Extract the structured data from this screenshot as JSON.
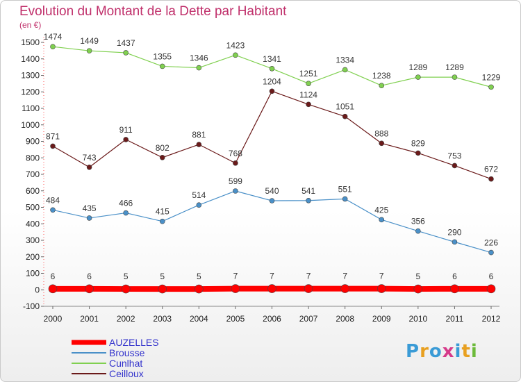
{
  "page": {
    "title": "Evolution du Montant de la Dette par Habitant",
    "unit": "(en €)"
  },
  "logo": {
    "letters": [
      "P",
      "r",
      "o",
      "x",
      "i",
      "t",
      "i"
    ],
    "colors": [
      "#3a9bd6",
      "#e8a020",
      "#3a9bd6",
      "#d63a8a",
      "#3a9bd6",
      "#e8a020",
      "#6cba3a"
    ]
  },
  "chart_data": {
    "type": "line",
    "x": [
      "2000",
      "2001",
      "2002",
      "2003",
      "2004",
      "2005",
      "2006",
      "2007",
      "2008",
      "2009",
      "2010",
      "2011",
      "2012"
    ],
    "ylim": [
      -100,
      1500
    ],
    "yticks": [
      -100,
      0,
      100,
      200,
      300,
      400,
      500,
      600,
      700,
      800,
      900,
      1000,
      1100,
      1200,
      1300,
      1400,
      1500
    ],
    "grid": false,
    "legend_position": "bottom-left",
    "series": [
      {
        "name": "AUZELLES",
        "color": "#ff0000",
        "values": [
          6,
          6,
          5,
          5,
          5,
          7,
          7,
          7,
          7,
          7,
          5,
          6,
          6
        ],
        "width": 8,
        "point_radius": 6,
        "label_color": "#333"
      },
      {
        "name": "Brousse",
        "color": "#4a90c8",
        "values": [
          484,
          435,
          466,
          415,
          514,
          599,
          540,
          541,
          551,
          425,
          356,
          290,
          226
        ],
        "width": 1.2,
        "point_radius": 3.5
      },
      {
        "name": "Cunlhat",
        "color": "#80d050",
        "values": [
          1474,
          1449,
          1437,
          1355,
          1346,
          1423,
          1341,
          1251,
          1334,
          1238,
          1289,
          1289,
          1229
        ],
        "width": 1.2,
        "point_radius": 3.5
      },
      {
        "name": "Ceilloux",
        "color": "#6b1a1a",
        "values": [
          871,
          743,
          911,
          802,
          881,
          768,
          1204,
          1124,
          1051,
          888,
          829,
          753,
          672
        ],
        "width": 1.2,
        "point_radius": 3.5
      }
    ]
  }
}
